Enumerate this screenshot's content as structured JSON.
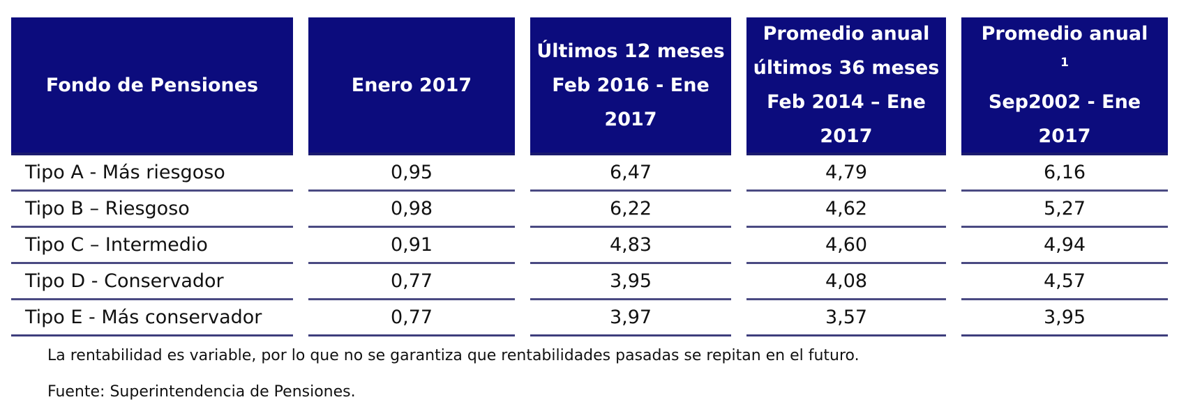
{
  "header": {
    "col0": [
      "Fondo de Pensiones"
    ],
    "col1": [
      "Enero 2017"
    ],
    "col2": [
      "Últimos 12 meses",
      "Feb 2016 - Ene",
      "2017"
    ],
    "col3": [
      "Promedio anual",
      "últimos 36 meses",
      "Feb 2014 – Ene",
      "2017"
    ],
    "col4_line1": "Promedio anual",
    "col4_sup": "1",
    "col4_rest": [
      "Sep2002 - Ene",
      "2017"
    ]
  },
  "rows": [
    [
      "Tipo A - Más riesgoso",
      "0,95",
      "6,47",
      "4,79",
      "6,16"
    ],
    [
      "Tipo B – Riesgoso",
      "0,98",
      "6,22",
      "4,62",
      "5,27"
    ],
    [
      "Tipo C – Intermedio",
      "0,91",
      "4,83",
      "4,60",
      "4,94"
    ],
    [
      "Tipo D - Conservador",
      "0,77",
      "3,95",
      "4,08",
      "4,57"
    ],
    [
      "Tipo E - Más conservador",
      "0,77",
      "3,97",
      "3,57",
      "3,95"
    ]
  ],
  "notes": {
    "disclaimer": "La rentabilidad es variable, por lo que no se garantiza que rentabilidades pasadas se repitan en el futuro.",
    "source": "Fuente: Superintendencia de Pensiones."
  },
  "colors": {
    "header_background": "#0c0c7d",
    "header_text": "#ffffff",
    "row_rule": "#4a4a82"
  }
}
